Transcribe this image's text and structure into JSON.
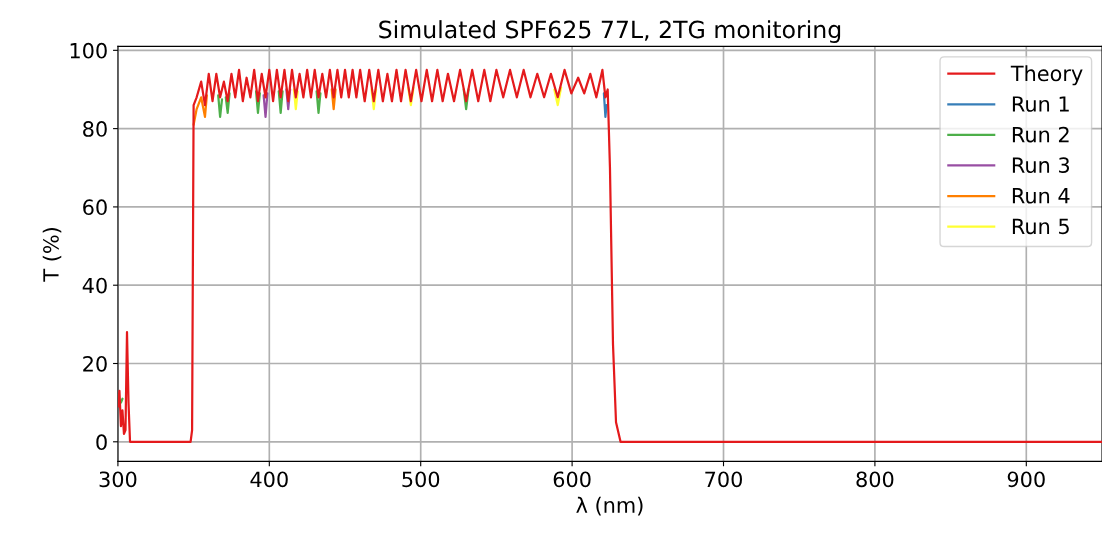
{
  "chart_data": {
    "type": "line",
    "title": "Simulated SPF625 77L, 2TG monitoring",
    "xlabel": "λ (nm)",
    "ylabel": "T (%)",
    "x": [
      300,
      301,
      302,
      303,
      304,
      305,
      306,
      307,
      308,
      310,
      348,
      349,
      350,
      352,
      355,
      357.5,
      360,
      362.5,
      365,
      367.5,
      370,
      372.5,
      375,
      377.5,
      380,
      382.5,
      385,
      387.5,
      390,
      392.5,
      395,
      397.5,
      400,
      402.5,
      405,
      407.5,
      410,
      412.5,
      415,
      417.5,
      420,
      422.5,
      425,
      427.5,
      430,
      432.5,
      435,
      437.5,
      440,
      442.5,
      445,
      447.5,
      450,
      452.5,
      455,
      457.5,
      460,
      463,
      466,
      469,
      472,
      475,
      478,
      481,
      484,
      487,
      490,
      493.5,
      497,
      500.5,
      504,
      507.5,
      511,
      514.5,
      518,
      522,
      526,
      530,
      534,
      538,
      542,
      546,
      550,
      554.5,
      559,
      563.5,
      568,
      572.5,
      577,
      581.5,
      586,
      590.5,
      595,
      599.5,
      604,
      608,
      612,
      616,
      620,
      622,
      623.5,
      625,
      627,
      629,
      632,
      950
    ],
    "series": [
      {
        "name": "Theory",
        "color": "#e41a1c",
        "values": [
          9,
          13,
          4,
          8,
          2,
          3,
          28,
          10,
          0,
          0,
          0,
          3,
          86,
          88,
          92,
          86,
          94,
          87,
          94,
          88,
          92,
          87,
          94,
          88,
          95,
          87,
          93,
          88,
          95,
          87,
          94,
          88,
          95,
          87,
          95,
          88,
          95,
          87,
          95,
          88,
          94,
          88,
          95,
          88,
          95,
          88,
          94,
          88,
          95,
          88,
          95,
          88,
          95,
          88,
          95,
          88,
          95,
          87,
          95,
          87,
          95,
          87,
          94,
          87,
          95,
          87,
          95,
          87,
          95,
          87,
          95,
          87,
          95,
          87,
          94,
          87,
          95,
          87,
          95,
          87,
          95,
          87,
          95,
          88,
          95,
          88,
          95,
          88,
          94,
          88,
          94,
          88,
          95,
          89,
          93,
          89,
          94,
          88,
          95,
          88,
          90,
          70,
          25,
          5,
          0,
          0
        ]
      },
      {
        "name": "Run 1",
        "color": "#377eb8",
        "x": [
          621,
          622,
          622.75
        ],
        "values": [
          89,
          83,
          86
        ]
      },
      {
        "name": "Run 2",
        "color": "#4daf4a",
        "x": [
          300,
          301,
          302,
          303,
          304,
          366.25,
          367.5,
          368.75,
          370,
          371.25,
          372.5,
          373.75,
          375,
          391.25,
          392.5,
          393.75,
          395,
          406.25,
          407.5,
          408.75,
          410,
          431.25,
          432.5,
          433.75,
          435,
          528.4,
          530,
          531.6
        ],
        "values": [
          12,
          10,
          10,
          11,
          null,
          88.5,
          83,
          87.5,
          null,
          88,
          84,
          89,
          null,
          89.5,
          84,
          89,
          null,
          89.5,
          84,
          89.5,
          null,
          89.5,
          84,
          89,
          null,
          90,
          85,
          90
        ]
      },
      {
        "name": "Run 3",
        "color": "#984ea3",
        "x": [
          396.25,
          397.5,
          398.75,
          400,
          411.25,
          412.5,
          413.75
        ],
        "values": [
          88.5,
          83,
          89,
          null,
          90,
          85,
          90
        ]
      },
      {
        "name": "Run 4",
        "color": "#ff7f00",
        "x": [
          350,
          352,
          355,
          356.25,
          357.5,
          358.75,
          360,
          441.25,
          442.5,
          443.75
        ],
        "values": [
          81,
          85,
          88,
          85.5,
          83,
          88.5,
          null,
          90,
          85,
          90
        ]
      },
      {
        "name": "Run 5",
        "color": "#ffff33",
        "x": [
          416.25,
          417.5,
          418.75,
          420,
          467.5,
          469,
          470.5,
          472,
          491.75,
          493.5,
          495.25,
          497,
          588.25,
          590.5,
          592.75
        ],
        "values": [
          90,
          85,
          89.5,
          null,
          90,
          85,
          90,
          null,
          90.5,
          86,
          90.5,
          null,
          90,
          86,
          90.5
        ]
      }
    ],
    "xlim": [
      300,
      950
    ],
    "ylim": [
      -5,
      101
    ],
    "xticks": [
      300,
      400,
      500,
      600,
      700,
      800,
      900
    ],
    "yticks": [
      0,
      20,
      40,
      60,
      80,
      100
    ],
    "grid": true,
    "legend": "top right",
    "marker": "none",
    "line_style": "solid"
  }
}
